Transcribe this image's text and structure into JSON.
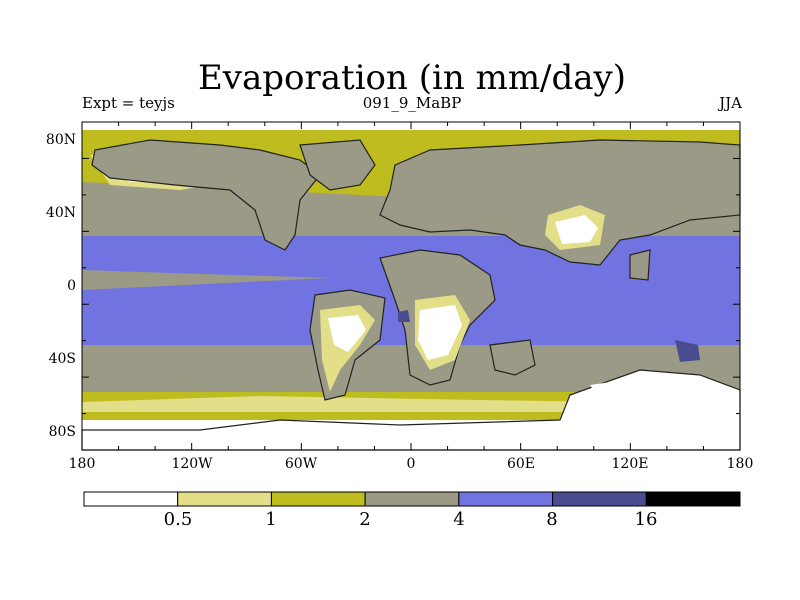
{
  "title": "Evaporation (in mm/day)",
  "subtitle": {
    "left": "Expt = teyjs",
    "center": "091_9_MaBP",
    "right": "JJA"
  },
  "axes": {
    "lat_ticks": [
      "80N",
      "40N",
      "0",
      "40S",
      "80S"
    ],
    "lon_ticks": [
      "180",
      "120W",
      "60W",
      "0",
      "60E",
      "120E",
      "180"
    ]
  },
  "colorbar": {
    "thresholds": [
      "0.5",
      "1",
      "2",
      "4",
      "8",
      "16"
    ],
    "colors": [
      "#ffffff",
      "#e2df88",
      "#bebc1e",
      "#9a9a86",
      "#7173e0",
      "#4a4c90",
      "#000000"
    ]
  },
  "ocean_band_colors": {
    "polar": "#ffffff",
    "subpolar": "#bebc1e",
    "midlat": "#9a9a86",
    "tropical": "#7173e0"
  },
  "land_colors": {
    "interior": "#9a9a86",
    "desert_core": "#ffffff",
    "desert_rim": "#e2df88",
    "humid_rim": "#bebc1e",
    "boundary_stroke": "#222222"
  }
}
